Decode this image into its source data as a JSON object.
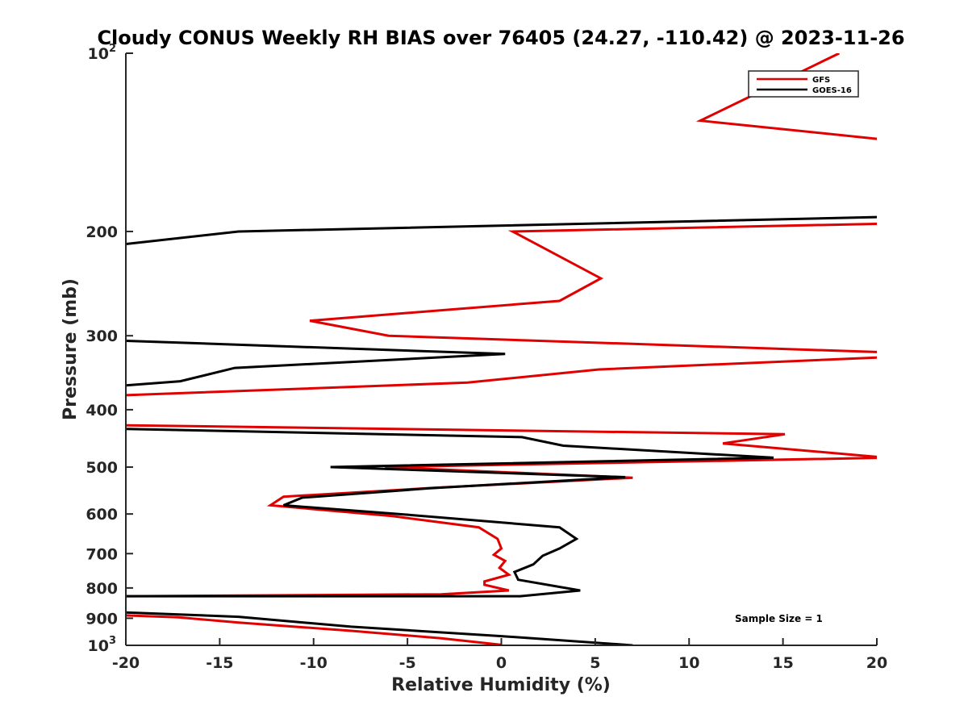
{
  "chart_data": {
    "type": "line",
    "title": "Cloudy CONUS Weekly RH BIAS over 76405 (24.27, -110.42) @ 2023-11-26",
    "xlabel": "Relative Humidity (%)",
    "ylabel": "Pressure (mb)",
    "xlim": [
      -20,
      20
    ],
    "ylim": [
      100,
      1000
    ],
    "y_scale": "log",
    "y_reversed": true,
    "x_ticks": [
      "-20",
      "-15",
      "-10",
      "-5",
      "0",
      "5",
      "10",
      "15",
      "20"
    ],
    "y_ticks": [
      {
        "value": 100,
        "base": "10",
        "exp": "2"
      },
      {
        "value": 200,
        "label": "200"
      },
      {
        "value": 300,
        "label": "300"
      },
      {
        "value": 400,
        "label": "400"
      },
      {
        "value": 500,
        "label": "500"
      },
      {
        "value": 600,
        "label": "600"
      },
      {
        "value": 700,
        "label": "700"
      },
      {
        "value": 800,
        "label": "800"
      },
      {
        "value": 900,
        "label": "900"
      },
      {
        "value": 1000,
        "base": "10",
        "exp": "3"
      }
    ],
    "grid": false,
    "legend_position": "top-right",
    "annotation": "Sample Size = 1",
    "series": [
      {
        "name": "GFS",
        "color": "#e00000",
        "points": [
          {
            "x": 18,
            "p": 100
          },
          {
            "x": 10.6,
            "p": 130
          },
          {
            "x": 20.5,
            "p": 140
          },
          {
            "x": null,
            "p": null
          },
          {
            "x": 20.5,
            "p": 194
          },
          {
            "x": 0.6,
            "p": 200
          },
          {
            "x": 5.3,
            "p": 240
          },
          {
            "x": 3.1,
            "p": 262
          },
          {
            "x": -10.2,
            "p": 283
          },
          {
            "x": -6,
            "p": 300
          },
          {
            "x": 20.5,
            "p": 320
          },
          {
            "x": 20.5,
            "p": 326
          },
          {
            "x": 5.2,
            "p": 342
          },
          {
            "x": -1.8,
            "p": 360
          },
          {
            "x": -20,
            "p": 378
          },
          {
            "x": null,
            "p": null
          },
          {
            "x": -20,
            "p": 425
          },
          {
            "x": 15.1,
            "p": 440
          },
          {
            "x": 11.8,
            "p": 456
          },
          {
            "x": 20.5,
            "p": 482
          },
          {
            "x": -6.2,
            "p": 500
          },
          {
            "x": 7,
            "p": 521
          },
          {
            "x": -3.6,
            "p": 542
          },
          {
            "x": -11.6,
            "p": 561
          },
          {
            "x": -12.3,
            "p": 580
          },
          {
            "x": -5.8,
            "p": 605
          },
          {
            "x": -1.2,
            "p": 632
          },
          {
            "x": -0.2,
            "p": 661
          },
          {
            "x": 0,
            "p": 686
          },
          {
            "x": -0.4,
            "p": 703
          },
          {
            "x": 0.2,
            "p": 720
          },
          {
            "x": -0.1,
            "p": 740
          },
          {
            "x": 0.4,
            "p": 760
          },
          {
            "x": -0.9,
            "p": 780
          },
          {
            "x": -0.9,
            "p": 790
          },
          {
            "x": 0.4,
            "p": 808
          },
          {
            "x": -3.2,
            "p": 820
          },
          {
            "x": -20,
            "p": 826
          },
          {
            "x": null,
            "p": null
          },
          {
            "x": -20,
            "p": 890
          },
          {
            "x": -17.2,
            "p": 897
          },
          {
            "x": -14,
            "p": 915
          },
          {
            "x": -8,
            "p": 945
          },
          {
            "x": -3.2,
            "p": 973
          },
          {
            "x": 0,
            "p": 998
          }
        ]
      },
      {
        "name": "GOES-16",
        "color": "#000000",
        "points": [
          {
            "x": 20.5,
            "p": 189
          },
          {
            "x": -14,
            "p": 200
          },
          {
            "x": -20,
            "p": 210
          },
          {
            "x": null,
            "p": null
          },
          {
            "x": -20,
            "p": 306
          },
          {
            "x": 0.2,
            "p": 322
          },
          {
            "x": -14.2,
            "p": 340
          },
          {
            "x": -17.1,
            "p": 358
          },
          {
            "x": -20,
            "p": 364
          },
          {
            "x": null,
            "p": null
          },
          {
            "x": -20,
            "p": 431
          },
          {
            "x": 1.1,
            "p": 445
          },
          {
            "x": 3.3,
            "p": 460
          },
          {
            "x": 14.5,
            "p": 482
          },
          {
            "x": -9.1,
            "p": 500
          },
          {
            "x": 6.6,
            "p": 520
          },
          {
            "x": -3.8,
            "p": 543
          },
          {
            "x": -10.6,
            "p": 563
          },
          {
            "x": -11.6,
            "p": 580
          },
          {
            "x": -5.2,
            "p": 601
          },
          {
            "x": 3.1,
            "p": 632
          },
          {
            "x": 4,
            "p": 661
          },
          {
            "x": 3.1,
            "p": 686
          },
          {
            "x": 2.2,
            "p": 706
          },
          {
            "x": 1.7,
            "p": 730
          },
          {
            "x": 0.7,
            "p": 752
          },
          {
            "x": 0.9,
            "p": 775
          },
          {
            "x": 4.2,
            "p": 808
          },
          {
            "x": 1,
            "p": 826
          },
          {
            "x": -20,
            "p": 826
          },
          {
            "x": null,
            "p": null
          },
          {
            "x": -20,
            "p": 880
          },
          {
            "x": -14,
            "p": 895
          },
          {
            "x": -8,
            "p": 930
          },
          {
            "x": 0,
            "p": 965
          },
          {
            "x": 7,
            "p": 1000
          }
        ]
      }
    ]
  }
}
